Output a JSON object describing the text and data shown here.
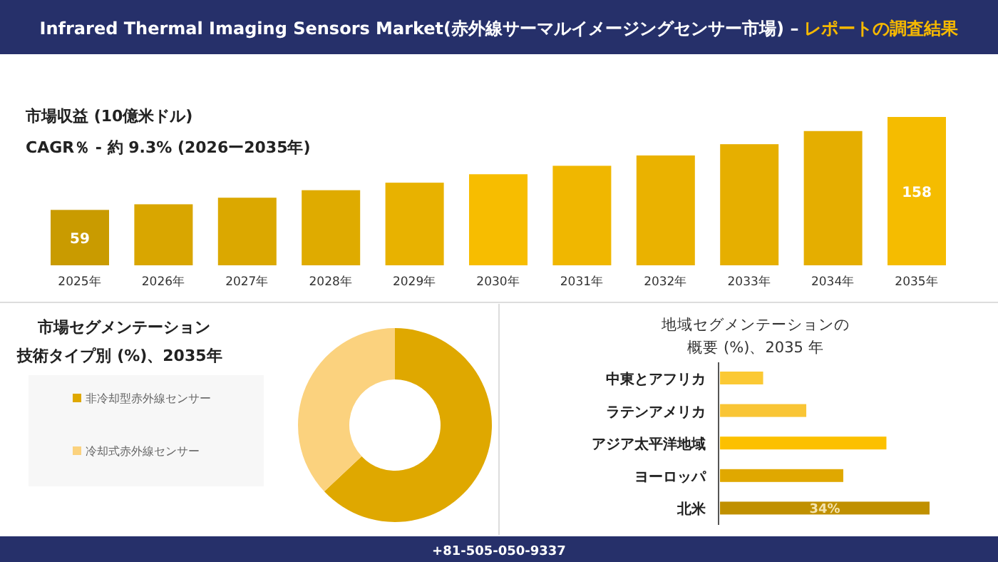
{
  "chart_data": [
    {
      "type": "bar",
      "title": "Infrared Thermal Imaging Sensors Market(赤外線サーマルイメージングセンサー市場) –",
      "subtitle": "レポートの調査結果",
      "ylabel": "市場収益 (10億米ドル)",
      "annotations": [
        "CAGR％ - 約 9.3% (2026ー2035年)",
        "+81-505-050-9337"
      ],
      "categories": [
        "2025年",
        "2026年",
        "2027年",
        "2028年",
        "2029年",
        "2030年",
        "2031年",
        "2032年",
        "2033年",
        "2034年",
        "2035年"
      ],
      "values": [
        59,
        65,
        72,
        80,
        88,
        97,
        106,
        117,
        129,
        143,
        158
      ],
      "colors": [
        "#c99b00",
        "#d9a600",
        "#dba800",
        "#dfab00",
        "#e8b200",
        "#f7bd00",
        "#f0b700",
        "#eab200",
        "#e6af00",
        "#e5ae00",
        "#f5bc00"
      ],
      "value_labels": [
        "59",
        null,
        null,
        null,
        null,
        null,
        null,
        null,
        null,
        null,
        "158"
      ]
    },
    {
      "type": "donut",
      "title": "市場セグメンテーション",
      "subtitle": "技術タイプ別 (%)、2035年",
      "categories": [
        "非冷却型赤外線センサー",
        "冷却式赤外線センサー"
      ],
      "values": [
        63,
        37
      ],
      "colors": [
        "#dfa800",
        "#fbd27e"
      ],
      "legend": "left"
    },
    {
      "type": "bar",
      "orientation": "horizontal",
      "title": "地域セグメンテーションの",
      "subtitle": "概要 (%)、2035 年",
      "categories": [
        "中東とアフリカ",
        "ラテンアメリカ",
        "アジア太平洋地域",
        "ヨーロッパ",
        "北米"
      ],
      "values": [
        7,
        14,
        27,
        20,
        34
      ],
      "colors": [
        "#fbc934",
        "#f9c535",
        "#fcc000",
        "#e0a800",
        "#c09000"
      ],
      "value_labels": [
        null,
        null,
        null,
        null,
        "34%"
      ]
    }
  ]
}
